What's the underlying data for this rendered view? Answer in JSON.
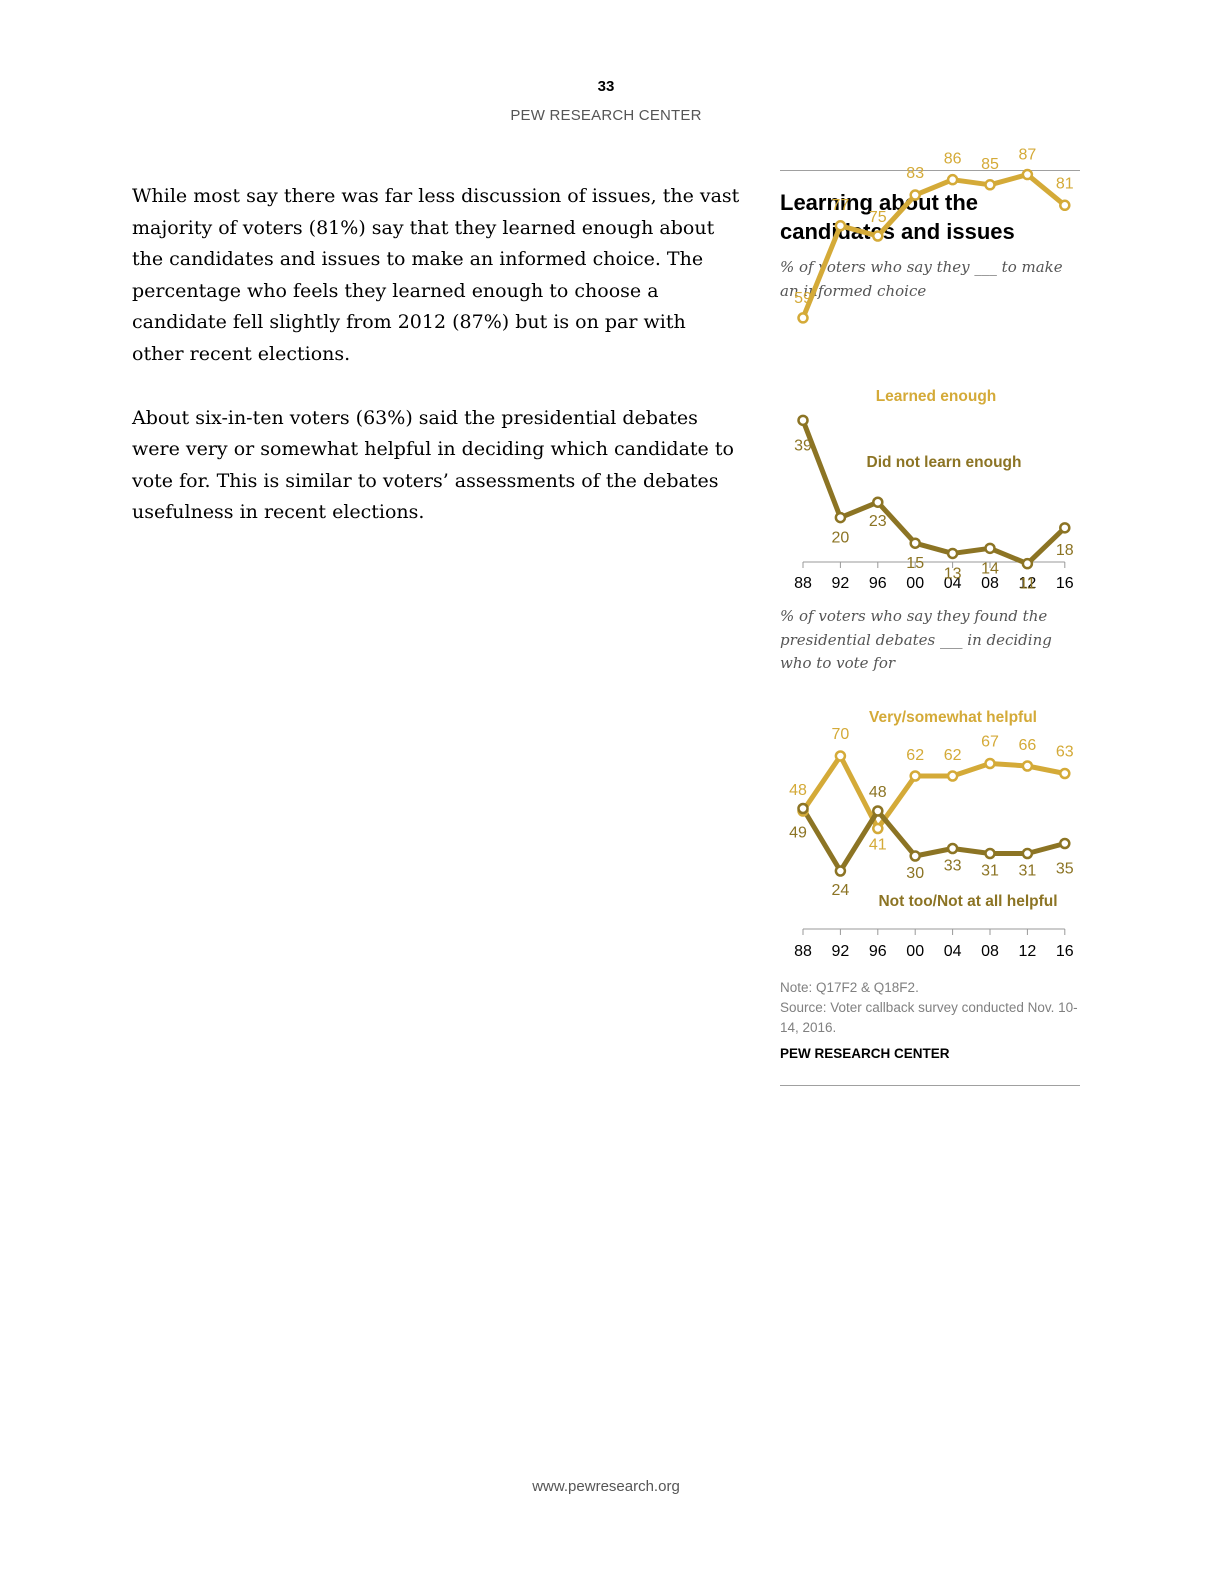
{
  "page": {
    "number": "33",
    "header": "PEW RESEARCH CENTER",
    "footer": "www.pewresearch.org"
  },
  "body": {
    "paragraphs": [
      "While most say there was far less discussion of issues, the vast majority of voters (81%) say that they learned enough about the candidates and issues to make an informed choice. The percentage who feels they learned enough to choose a candidate fell slightly from 2012 (87%) but is on par with other recent elections.",
      "About six-in-ten voters (63%) said the presidential debates were very or somewhat helpful in deciding which candidate to vote for. This is similar to voters’ assessments of the debates usefulness in recent elections."
    ]
  },
  "sidebar": {
    "title": "Learning about the candidates and issues",
    "note": "Note: Q17F2 & Q18F2.",
    "source": "Source:  Voter callback survey conducted Nov. 10-14, 2016.",
    "credit": "PEW RESEARCH CENTER"
  },
  "colors": {
    "light": "#D4AA38",
    "dark": "#8C7424",
    "axis": "#999999"
  },
  "chart_data": [
    {
      "type": "line",
      "subtitle": "% of voters who say they ___ to make an informed choice",
      "x": [
        "88",
        "92",
        "96",
        "00",
        "04",
        "08",
        "12",
        "16"
      ],
      "series": [
        {
          "name": "Learned enough",
          "values": [
            59,
            77,
            75,
            83,
            86,
            85,
            87,
            81
          ],
          "color": "light",
          "label_position": "above"
        },
        {
          "name": "Did not learn enough",
          "values": [
            39,
            20,
            23,
            15,
            13,
            14,
            11,
            18
          ],
          "color": "dark",
          "label_position": "below"
        }
      ],
      "ylim": [
        0,
        100
      ],
      "legend": "inline"
    },
    {
      "type": "line",
      "subtitle": "% of voters who say they found the presidential debates ___ in deciding who to vote for",
      "x": [
        "88",
        "92",
        "96",
        "00",
        "04",
        "08",
        "12",
        "16"
      ],
      "series": [
        {
          "name": "Very/somewhat helpful",
          "values": [
            48,
            70,
            41,
            62,
            62,
            67,
            66,
            63
          ],
          "color": "light"
        },
        {
          "name": "Not too/Not at all helpful",
          "values": [
            49,
            24,
            48,
            30,
            33,
            31,
            31,
            35
          ],
          "color": "dark"
        }
      ],
      "ylim": [
        0,
        100
      ],
      "legend": "inline"
    }
  ]
}
